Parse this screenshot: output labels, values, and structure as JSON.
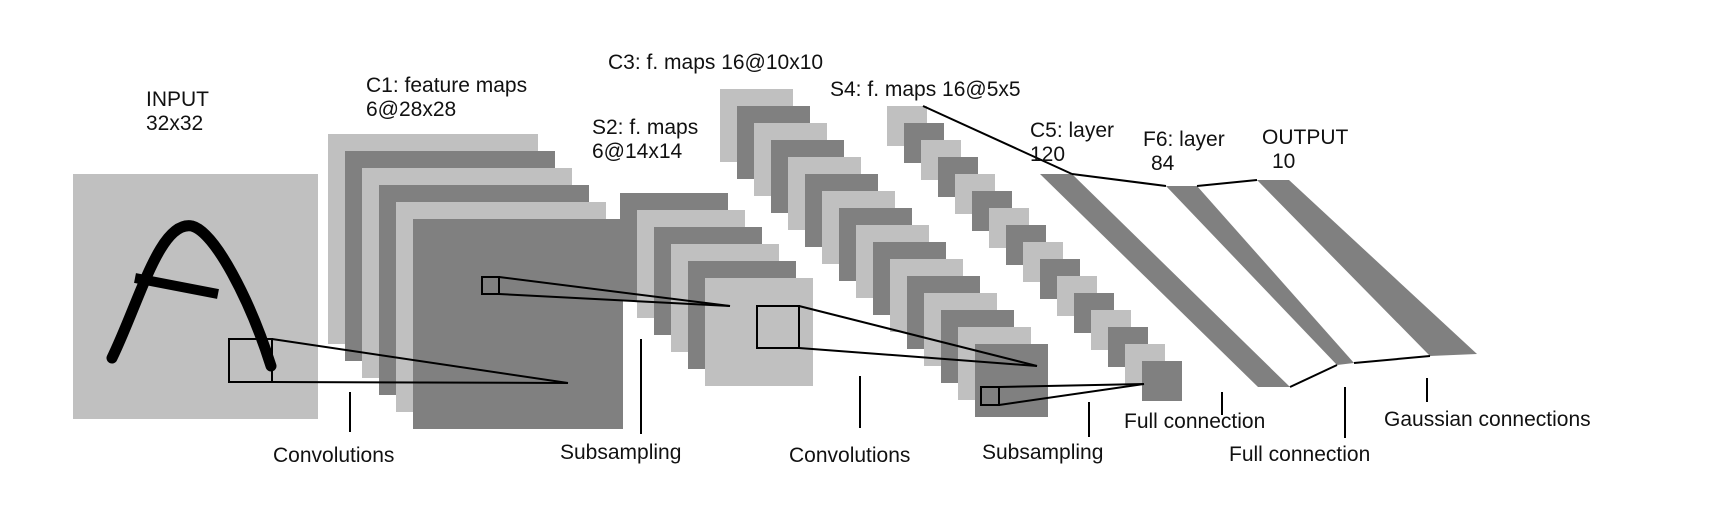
{
  "layers": {
    "input": {
      "name": "INPUT",
      "size": "32x32"
    },
    "c1": {
      "name": "C1: feature maps",
      "size": "6@28x28"
    },
    "s2": {
      "name": "S2: f. maps",
      "size": "6@14x14"
    },
    "c3": {
      "name": "C3: f. maps 16@10x10"
    },
    "s4": {
      "name": "S4: f. maps 16@5x5"
    },
    "c5": {
      "name": "C5: layer",
      "size": "120"
    },
    "f6": {
      "name": "F6: layer",
      "size": "84"
    },
    "output": {
      "name": "OUTPUT",
      "size": "10"
    }
  },
  "operations": {
    "conv1": "Convolutions",
    "sub1": "Subsampling",
    "conv2": "Convolutions",
    "sub2": "Subsampling",
    "full1": "Full connection",
    "full2": "Full connection",
    "gauss": "Gaussian connections"
  },
  "colors": {
    "light_map": "#c0c0c0",
    "dark_map": "#808080",
    "line": "#000000",
    "background": "#ffffff"
  }
}
